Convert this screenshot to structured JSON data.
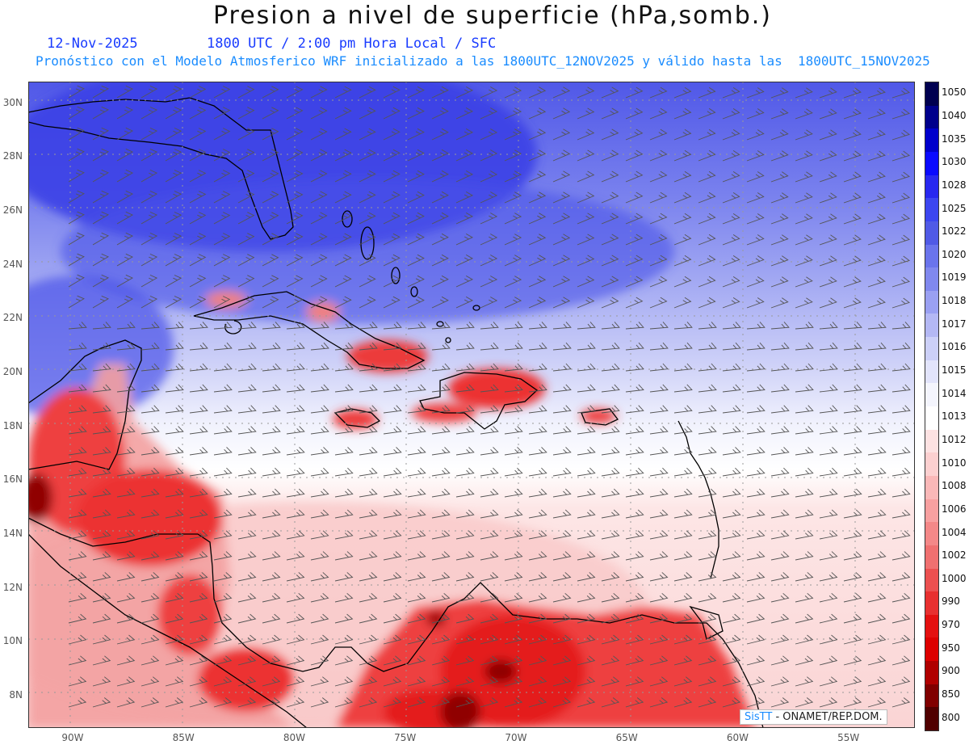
{
  "header": {
    "title": "Presion a nivel de superficie (hPa,somb.)",
    "date": "12-Nov-2025",
    "time_info": "1800 UTC / 2:00 pm Hora Local / SFC",
    "forecast_info": "Pronóstico con el Modelo Atmosferico WRF inicializado a las 1800UTC_12NOV2025 y válido hasta las  1800UTC_15NOV2025"
  },
  "map": {
    "lon_range": [
      -92,
      -52
    ],
    "lat_range": [
      6.8,
      30.8
    ],
    "lat_ticks": [
      "30N",
      "28N",
      "26N",
      "24N",
      "22N",
      "20N",
      "18N",
      "16N",
      "14N",
      "12N",
      "10N",
      "8N"
    ],
    "lon_ticks": [
      "90W",
      "85W",
      "80W",
      "75W",
      "70W",
      "65W",
      "60W",
      "55W"
    ],
    "land_labels": []
  },
  "colorbar": {
    "levels": [
      "1050",
      "1040",
      "1035",
      "1030",
      "1028",
      "1025",
      "1022",
      "1020",
      "1019",
      "1018",
      "1017",
      "1016",
      "1015",
      "1014",
      "1013",
      "1012",
      "1010",
      "1008",
      "1006",
      "1004",
      "1002",
      "1000",
      "990",
      "970",
      "950",
      "900",
      "850",
      "800"
    ],
    "colors": [
      "#000050",
      "#00008c",
      "#0000cc",
      "#0a0aff",
      "#2828f0",
      "#3c46f0",
      "#505ae6",
      "#6a74ec",
      "#8088ee",
      "#9aa0f2",
      "#b4b8f4",
      "#ccd0f8",
      "#e2e4fb",
      "#f4f5fd",
      "#ffffff",
      "#fde2e2",
      "#fcd0d0",
      "#fab8b8",
      "#f8a0a0",
      "#f48888",
      "#f07070",
      "#ec5050",
      "#e83030",
      "#e41010",
      "#dd0000",
      "#b00000",
      "#800000",
      "#500000"
    ]
  },
  "credit": {
    "brand": "SisTT",
    "text": "- ONAMET/REP.DOM."
  }
}
